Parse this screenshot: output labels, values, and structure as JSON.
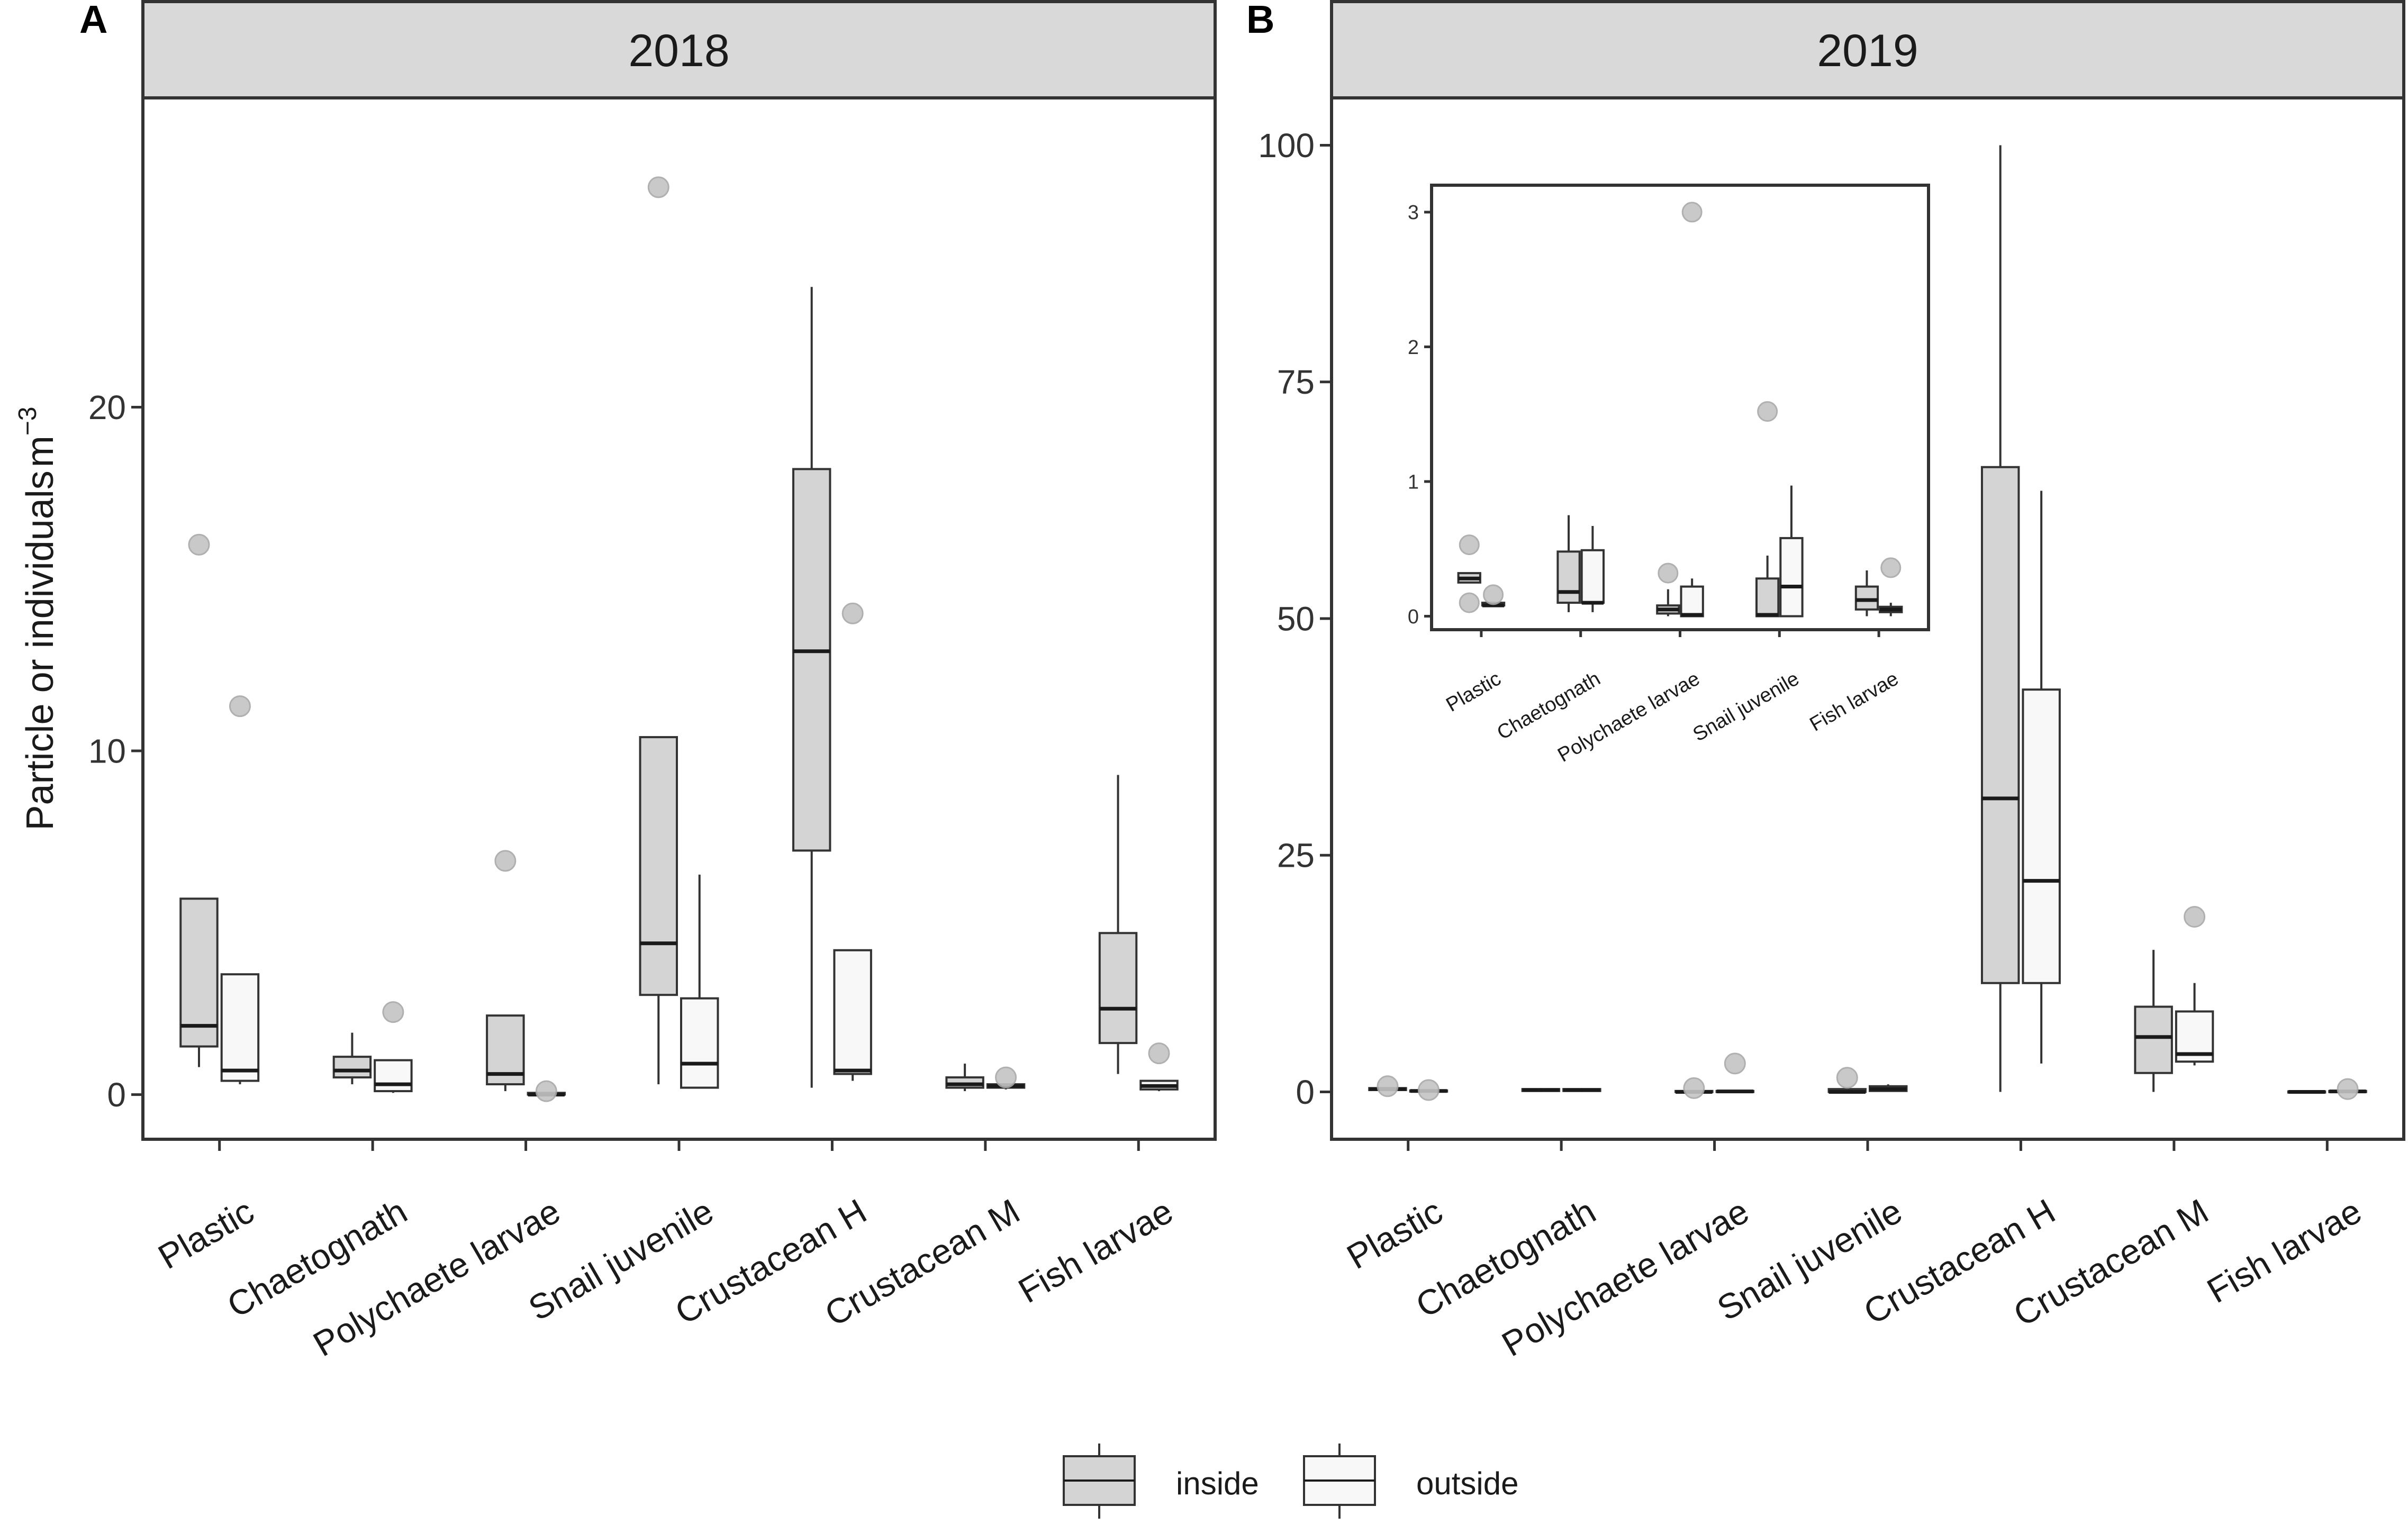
{
  "chart_data": {
    "type": "boxplot",
    "ylabel": "Particle or individuals",
    "ylabel_unit": "m",
    "ylabel_exponent": "−3",
    "legend": {
      "position": "bottom",
      "entries": [
        {
          "name": "inside",
          "color": "#d4d4d4"
        },
        {
          "name": "outside",
          "color": "#f8f8f8"
        }
      ]
    },
    "panels": [
      {
        "letter": "A",
        "title": "2018",
        "ylim": [
          -1.3,
          29
        ],
        "yticks": [
          0,
          10,
          20
        ],
        "categories": [
          "Plastic",
          "Chaetognath",
          "Polychaete larvae",
          "Snail juvenile",
          "Crustacean H",
          "Crustacean M",
          "Fish larvae"
        ],
        "series": [
          {
            "name": "inside",
            "boxes": [
              {
                "min": 0.8,
                "q1": 1.4,
                "median": 2.0,
                "q3": 5.7,
                "max": 5.7,
                "outliers": [
                  16.0
                ]
              },
              {
                "min": 0.3,
                "q1": 0.5,
                "median": 0.7,
                "q3": 1.1,
                "max": 1.8,
                "outliers": []
              },
              {
                "min": 0.1,
                "q1": 0.3,
                "median": 0.6,
                "q3": 2.3,
                "max": 2.3,
                "outliers": [
                  6.8
                ]
              },
              {
                "min": 0.3,
                "q1": 2.9,
                "median": 4.4,
                "q3": 10.4,
                "max": 10.4,
                "outliers": [
                  26.4
                ]
              },
              {
                "min": 0.2,
                "q1": 7.1,
                "median": 12.9,
                "q3": 18.2,
                "max": 23.5,
                "outliers": []
              },
              {
                "min": 0.1,
                "q1": 0.2,
                "median": 0.3,
                "q3": 0.5,
                "max": 0.9,
                "outliers": []
              },
              {
                "min": 0.6,
                "q1": 1.5,
                "median": 2.5,
                "q3": 4.7,
                "max": 9.3,
                "outliers": []
              }
            ]
          },
          {
            "name": "outside",
            "boxes": [
              {
                "min": 0.3,
                "q1": 0.4,
                "median": 0.7,
                "q3": 3.5,
                "max": 3.5,
                "outliers": [
                  11.3
                ]
              },
              {
                "min": 0.05,
                "q1": 0.1,
                "median": 0.3,
                "q3": 1.0,
                "max": 1.0,
                "outliers": [
                  2.4
                ]
              },
              {
                "min": 0.0,
                "q1": 0.0,
                "median": 0.0,
                "q3": 0.05,
                "max": 0.05,
                "outliers": [
                  0.1
                ]
              },
              {
                "min": 0.2,
                "q1": 0.2,
                "median": 0.9,
                "q3": 2.8,
                "max": 6.4,
                "outliers": []
              },
              {
                "min": 0.4,
                "q1": 0.6,
                "median": 0.7,
                "q3": 4.2,
                "max": 4.2,
                "outliers": [
                  14.0
                ]
              },
              {
                "min": 0.15,
                "q1": 0.2,
                "median": 0.25,
                "q3": 0.3,
                "max": 0.3,
                "outliers": [
                  0.5
                ]
              },
              {
                "min": 0.1,
                "q1": 0.15,
                "median": 0.25,
                "q3": 0.4,
                "max": 0.4,
                "outliers": [
                  1.2
                ]
              }
            ]
          }
        ]
      },
      {
        "letter": "B",
        "title": "2019",
        "ylim": [
          -5,
          105
        ],
        "yticks": [
          0,
          25,
          50,
          75,
          100
        ],
        "categories": [
          "Plastic",
          "Chaetognath",
          "Polychaete larvae",
          "Snail juvenile",
          "Crustacean H",
          "Crustacean M",
          "Fish larvae"
        ],
        "series": [
          {
            "name": "inside",
            "boxes": [
              {
                "min": 0.1,
                "q1": 0.2,
                "median": 0.3,
                "q3": 0.4,
                "max": 0.4,
                "outliers": [
                  0.6
                ]
              },
              {
                "min": 0.0,
                "q1": 0.1,
                "median": 0.2,
                "q3": 0.3,
                "max": 0.4,
                "outliers": []
              },
              {
                "min": 0.0,
                "q1": 0.0,
                "median": 0.0,
                "q3": 0.1,
                "max": 0.1,
                "outliers": [
                  0.4
                ]
              },
              {
                "min": 0.0,
                "q1": 0.0,
                "median": 0.0,
                "q3": 0.3,
                "max": 0.3,
                "outliers": [
                  1.5
                ]
              },
              {
                "min": 0.0,
                "q1": 11.5,
                "median": 31.0,
                "q3": 66.0,
                "max": 100.0,
                "outliers": []
              },
              {
                "min": 0.0,
                "q1": 2.0,
                "median": 5.8,
                "q3": 9.0,
                "max": 15.0,
                "outliers": []
              },
              {
                "min": 0.0,
                "q1": 0.0,
                "median": 0.0,
                "q3": 0.05,
                "max": 0.05,
                "outliers": []
              }
            ]
          },
          {
            "name": "outside",
            "boxes": [
              {
                "min": 0.0,
                "q1": 0.1,
                "median": 0.1,
                "q3": 0.15,
                "max": 0.15,
                "outliers": [
                  0.2
                ]
              },
              {
                "min": 0.0,
                "q1": 0.1,
                "median": 0.2,
                "q3": 0.3,
                "max": 0.4,
                "outliers": []
              },
              {
                "min": 0.0,
                "q1": 0.0,
                "median": 0.05,
                "q3": 0.1,
                "max": 0.1,
                "outliers": [
                  3.0
                ]
              },
              {
                "min": 0.0,
                "q1": 0.1,
                "median": 0.3,
                "q3": 0.6,
                "max": 0.8,
                "outliers": []
              },
              {
                "min": 3.0,
                "q1": 11.5,
                "median": 22.3,
                "q3": 42.5,
                "max": 63.5,
                "outliers": []
              },
              {
                "min": 2.8,
                "q1": 3.2,
                "median": 4.0,
                "q3": 8.5,
                "max": 11.5,
                "outliers": [
                  18.5
                ]
              },
              {
                "min": 0.0,
                "q1": 0.0,
                "median": 0.05,
                "q3": 0.1,
                "max": 0.1,
                "outliers": [
                  0.3
                ]
              }
            ]
          }
        ],
        "inset": {
          "ylim": [
            -0.1,
            3.2
          ],
          "yticks": [
            0,
            1,
            2,
            3
          ],
          "categories": [
            "Plastic",
            "Chaetognath",
            "Polychaete larvae",
            "Snail juvenile",
            "Fish larvae"
          ],
          "series": [
            {
              "name": "inside",
              "boxes": [
                {
                  "min": 0.25,
                  "q1": 0.25,
                  "median": 0.28,
                  "q3": 0.32,
                  "max": 0.32,
                  "outliers": [
                    0.53,
                    0.1
                  ]
                },
                {
                  "min": 0.03,
                  "q1": 0.1,
                  "median": 0.18,
                  "q3": 0.48,
                  "max": 0.75,
                  "outliers": []
                },
                {
                  "min": 0.0,
                  "q1": 0.02,
                  "median": 0.05,
                  "q3": 0.08,
                  "max": 0.2,
                  "outliers": [
                    0.32
                  ]
                },
                {
                  "min": 0.0,
                  "q1": 0.0,
                  "median": 0.01,
                  "q3": 0.28,
                  "max": 0.45,
                  "outliers": [
                    1.52
                  ]
                },
                {
                  "min": 0.0,
                  "q1": 0.05,
                  "median": 0.12,
                  "q3": 0.22,
                  "max": 0.34,
                  "outliers": []
                }
              ]
            },
            {
              "name": "outside",
              "boxes": [
                {
                  "min": 0.08,
                  "q1": 0.08,
                  "median": 0.08,
                  "q3": 0.1,
                  "max": 0.1,
                  "outliers": [
                    0.16
                  ]
                },
                {
                  "min": 0.03,
                  "q1": 0.1,
                  "median": 0.1,
                  "q3": 0.49,
                  "max": 0.67,
                  "outliers": []
                },
                {
                  "min": 0.0,
                  "q1": 0.0,
                  "median": 0.01,
                  "q3": 0.22,
                  "max": 0.28,
                  "outliers": [
                    3.0
                  ]
                },
                {
                  "min": 0.0,
                  "q1": 0.0,
                  "median": 0.22,
                  "q3": 0.58,
                  "max": 0.97,
                  "outliers": []
                },
                {
                  "min": 0.0,
                  "q1": 0.03,
                  "median": 0.05,
                  "q3": 0.07,
                  "max": 0.1,
                  "outliers": [
                    0.36
                  ]
                }
              ]
            }
          ]
        }
      }
    ]
  }
}
